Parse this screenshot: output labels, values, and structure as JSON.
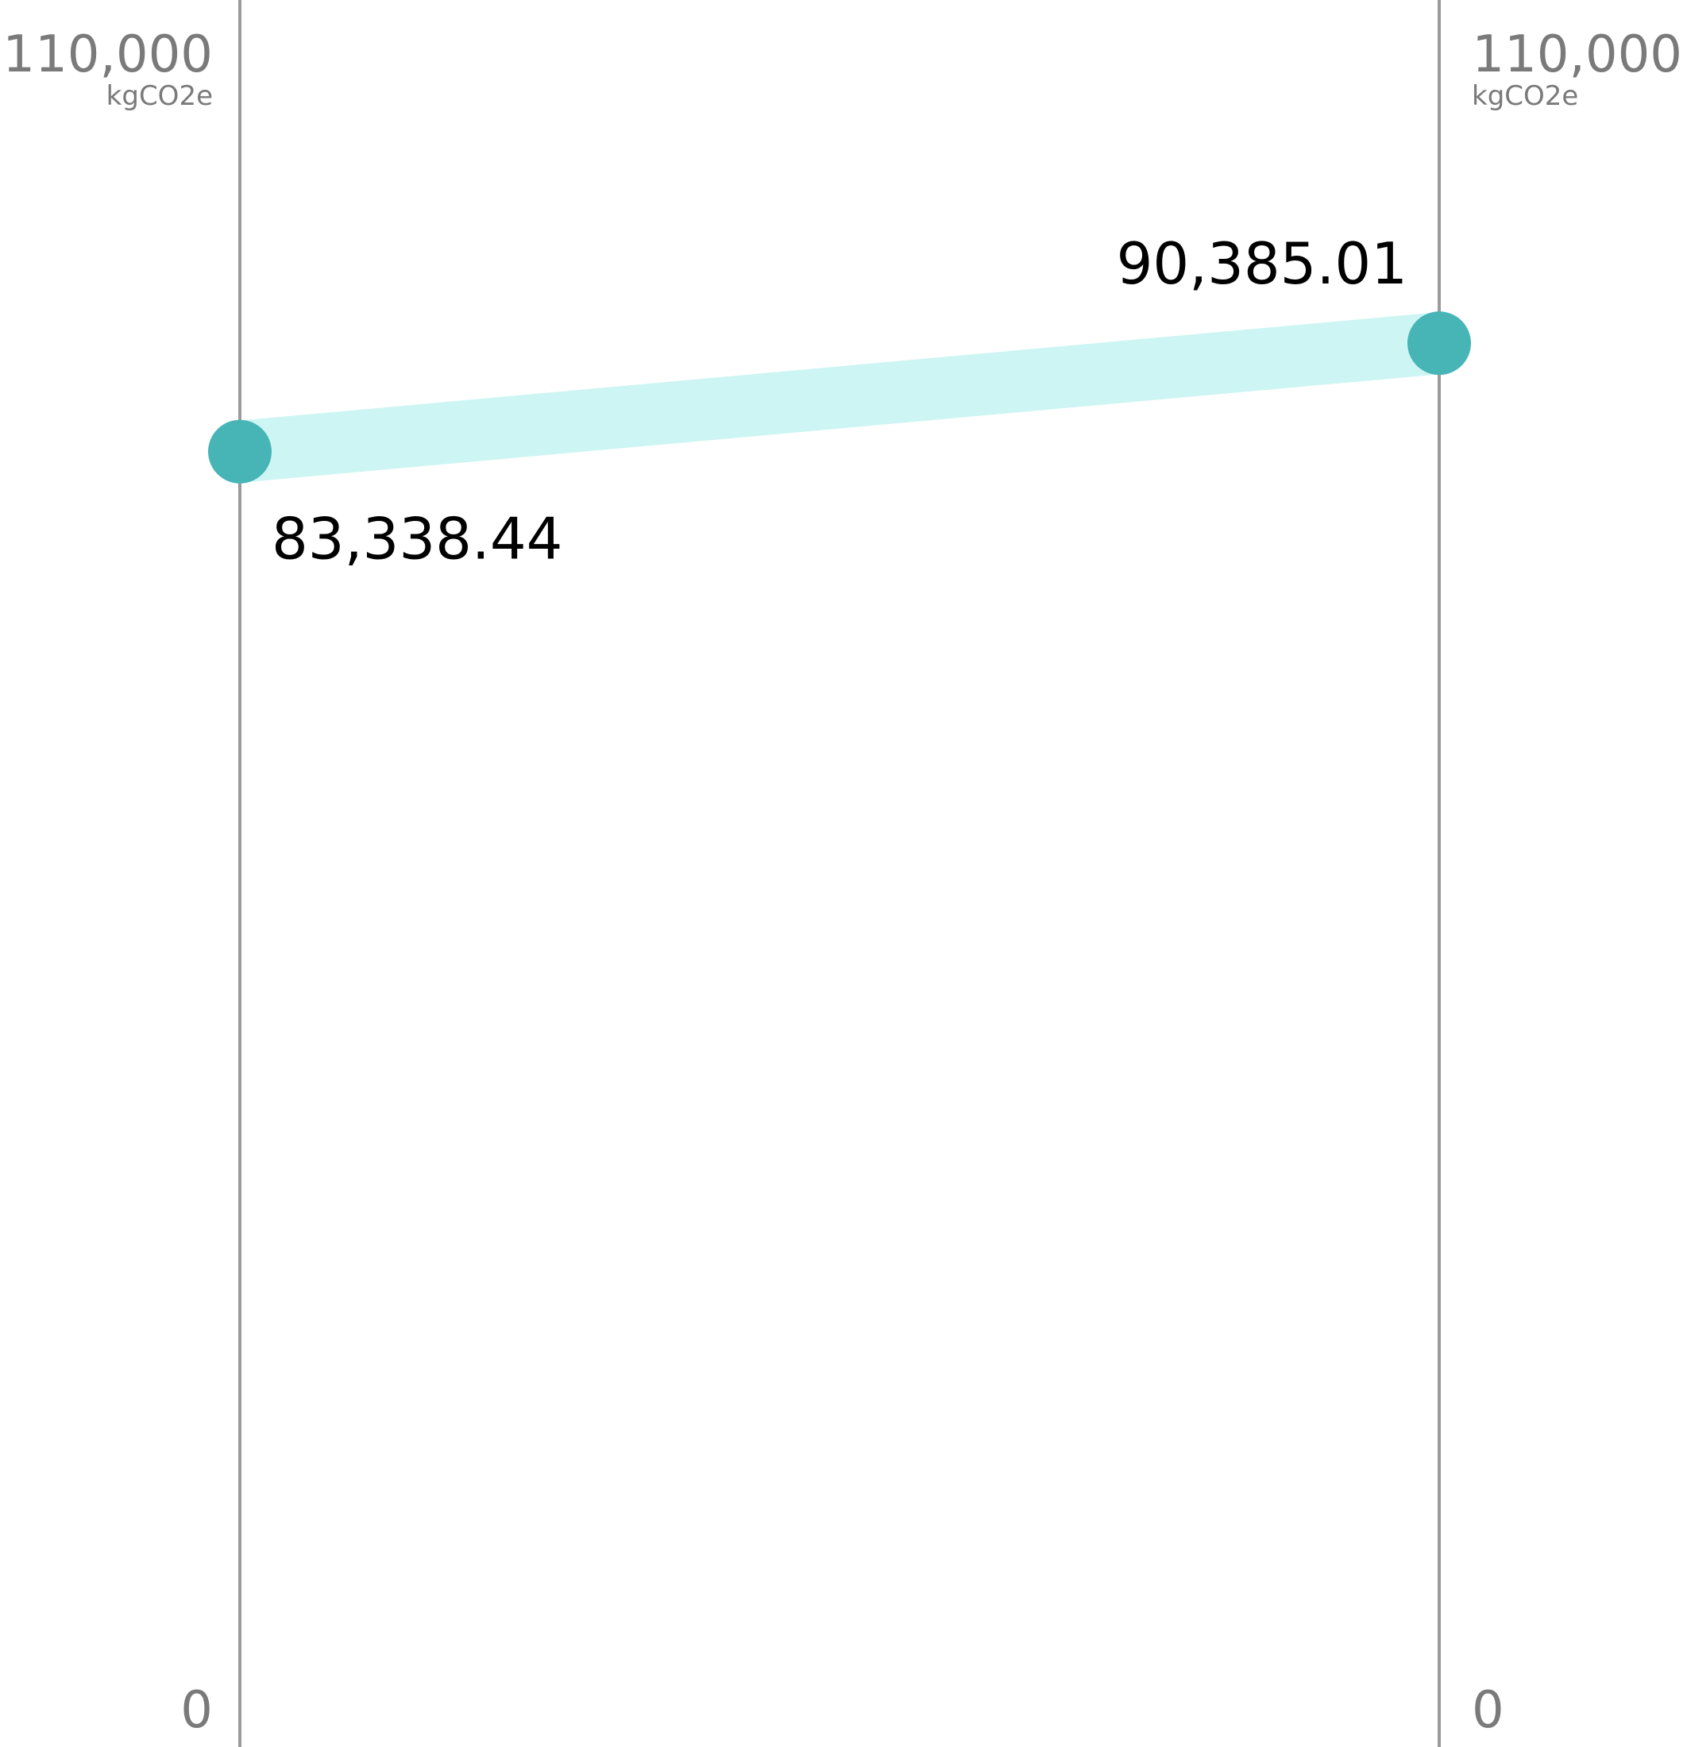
{
  "chart_data": {
    "type": "line",
    "title": "",
    "xlabel": "",
    "ylabel": "",
    "axes": [
      {
        "max_label": "110,000",
        "unit_label": "kgCO2e",
        "min_label": "0"
      },
      {
        "max_label": "110,000",
        "unit_label": "kgCO2e",
        "min_label": "0"
      }
    ],
    "ylim": [
      0,
      110000
    ],
    "x": [
      0,
      1
    ],
    "values": [
      83338.44,
      90385.01
    ],
    "value_labels": [
      "83,338.44",
      "90,385.01"
    ],
    "grid": false,
    "legend": "none"
  },
  "colors": {
    "axis_line": "#9b9b9b",
    "axis_text": "#7a7a7a",
    "band": "#cdf5f3",
    "point": "#47b5b6",
    "value_text": "#000000",
    "background": "#ffffff"
  }
}
